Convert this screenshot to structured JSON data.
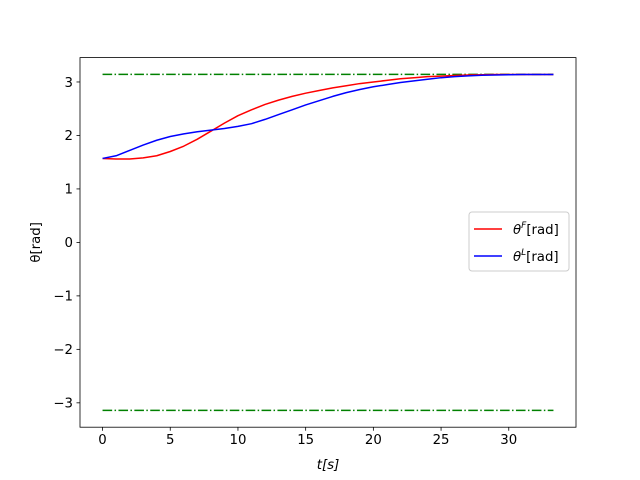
{
  "chart_data": {
    "type": "line",
    "xlabel": "t[s]",
    "ylabel": "θ[rad]",
    "xlim": [
      -1.665,
      34.965
    ],
    "ylim": [
      -3.4557,
      3.4557
    ],
    "xticks": [
      0,
      5,
      10,
      15,
      20,
      25,
      30
    ],
    "yticks": [
      -3,
      -2,
      -1,
      0,
      1,
      2,
      3
    ],
    "grid": false,
    "legend_position": "center-right",
    "series": [
      {
        "name": "θF[rad]",
        "color": "#ff0000",
        "x": [
          0,
          1,
          2,
          3,
          4,
          5,
          6,
          7,
          8,
          9,
          10,
          11,
          12,
          13,
          14,
          15,
          16,
          17,
          18,
          19,
          20,
          21,
          22,
          23,
          24,
          25,
          26,
          27,
          28,
          29,
          30,
          31,
          32,
          33.3
        ],
        "y": [
          1.57,
          1.56,
          1.56,
          1.58,
          1.62,
          1.7,
          1.8,
          1.93,
          2.08,
          2.23,
          2.37,
          2.48,
          2.58,
          2.66,
          2.73,
          2.79,
          2.84,
          2.89,
          2.93,
          2.97,
          3.0,
          3.03,
          3.06,
          3.08,
          3.1,
          3.11,
          3.12,
          3.13,
          3.135,
          3.14,
          3.14,
          3.14,
          3.14,
          3.14
        ]
      },
      {
        "name": "θL[rad]",
        "color": "#0000ff",
        "x": [
          0,
          1,
          2,
          3,
          4,
          5,
          6,
          7,
          8,
          9,
          10,
          11,
          12,
          13,
          14,
          15,
          16,
          17,
          18,
          19,
          20,
          21,
          22,
          23,
          24,
          25,
          26,
          27,
          28,
          29,
          30,
          31,
          32,
          33.3
        ],
        "y": [
          1.57,
          1.62,
          1.72,
          1.82,
          1.91,
          1.98,
          2.03,
          2.07,
          2.1,
          2.13,
          2.17,
          2.22,
          2.3,
          2.39,
          2.48,
          2.57,
          2.65,
          2.73,
          2.8,
          2.86,
          2.91,
          2.95,
          2.99,
          3.02,
          3.05,
          3.08,
          3.1,
          3.115,
          3.125,
          3.13,
          3.135,
          3.14,
          3.14,
          3.14
        ]
      }
    ],
    "reference_lines": [
      {
        "y": 3.14159,
        "x_range": [
          0,
          33.3
        ],
        "color": "#008000",
        "style": "dash-dot"
      },
      {
        "y": -3.14159,
        "x_range": [
          0,
          33.3
        ],
        "color": "#008000",
        "style": "dash-dot"
      }
    ],
    "legend": [
      {
        "symbol": "θ",
        "sup": "F",
        "unit": "[rad]",
        "color": "#ff0000"
      },
      {
        "symbol": "θ",
        "sup": "L",
        "unit": "[rad]",
        "color": "#0000ff"
      }
    ]
  }
}
